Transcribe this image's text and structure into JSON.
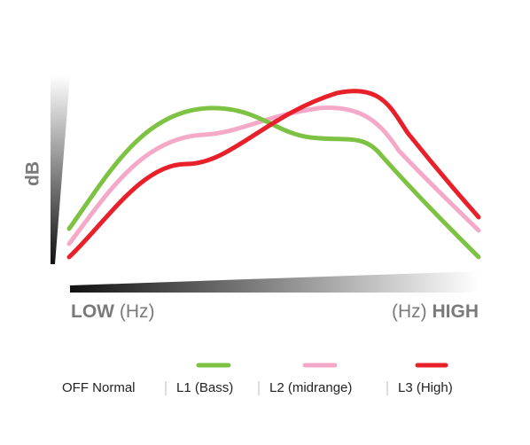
{
  "axes": {
    "y_label": "dB",
    "x_low": "LOW",
    "x_low_unit": "(Hz)",
    "x_high_unit": "(Hz)",
    "x_high": "HIGH"
  },
  "legend": [
    {
      "label": "OFF Normal"
    },
    {
      "label": "L1 (Bass)",
      "color": "#7dc242"
    },
    {
      "label": "L2 (midrange)",
      "color": "#f4a9c8"
    },
    {
      "label": "L3 (High)",
      "color": "#e8202a"
    }
  ]
}
